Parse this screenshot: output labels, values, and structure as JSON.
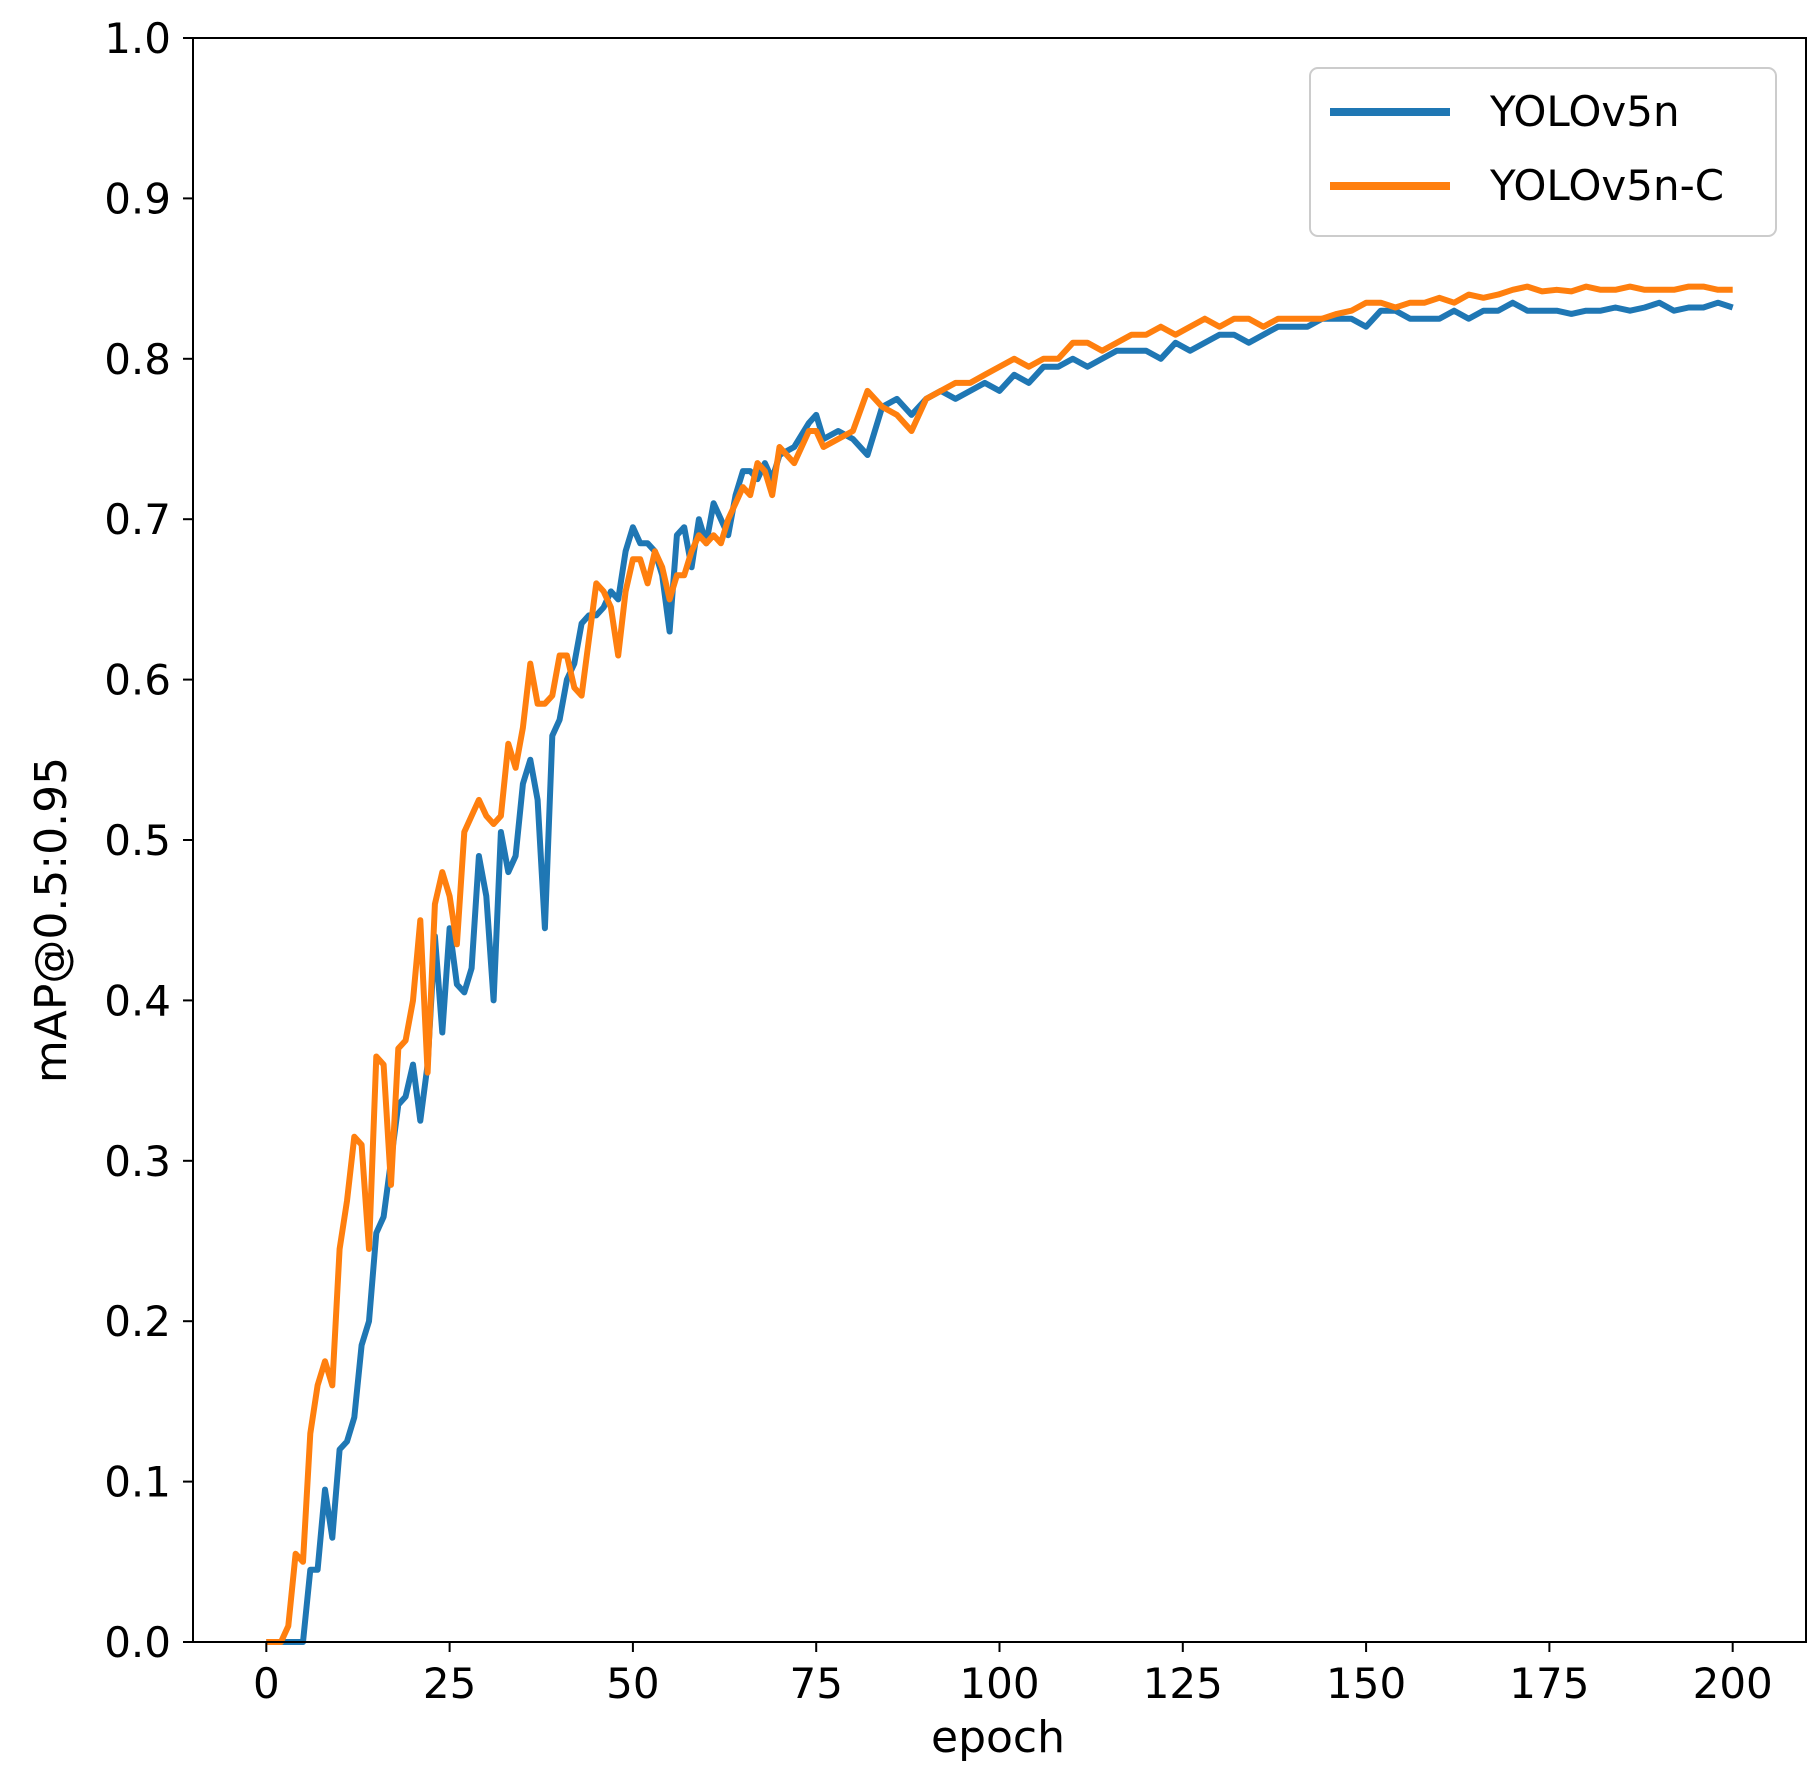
{
  "chart_data": {
    "type": "line",
    "xlabel": "epoch",
    "ylabel": "mAP@0.5:0.95",
    "xlim": [
      -10,
      210
    ],
    "ylim": [
      0.0,
      1.0
    ],
    "xticks": [
      "0",
      "25",
      "50",
      "75",
      "100",
      "125",
      "150",
      "175",
      "200"
    ],
    "yticks": [
      "0.0",
      "0.1",
      "0.2",
      "0.3",
      "0.4",
      "0.5",
      "0.6",
      "0.7",
      "0.8",
      "0.9",
      "1.0"
    ],
    "grid": false,
    "legend_position": "top-right",
    "series": [
      {
        "name": "YOLOv5n",
        "color": "#1f77b4",
        "x": [
          0,
          2,
          4,
          5,
          6,
          7,
          8,
          9,
          10,
          11,
          12,
          13,
          14,
          15,
          16,
          17,
          18,
          19,
          20,
          21,
          22,
          23,
          24,
          25,
          26,
          27,
          28,
          29,
          30,
          31,
          32,
          33,
          34,
          35,
          36,
          37,
          38,
          39,
          40,
          41,
          42,
          43,
          44,
          45,
          46,
          47,
          48,
          49,
          50,
          51,
          52,
          53,
          54,
          55,
          56,
          57,
          58,
          59,
          60,
          61,
          62,
          63,
          64,
          65,
          66,
          67,
          68,
          69,
          70,
          72,
          74,
          75,
          76,
          78,
          80,
          82,
          84,
          86,
          88,
          90,
          92,
          94,
          96,
          98,
          100,
          102,
          104,
          106,
          108,
          110,
          112,
          114,
          116,
          118,
          120,
          122,
          124,
          126,
          128,
          130,
          132,
          134,
          136,
          138,
          140,
          142,
          144,
          146,
          148,
          150,
          152,
          154,
          156,
          158,
          160,
          162,
          164,
          166,
          168,
          170,
          172,
          174,
          176,
          178,
          180,
          182,
          184,
          186,
          188,
          190,
          192,
          194,
          196,
          198,
          200
        ],
        "values": [
          0.0,
          0.0,
          0.0,
          0.0,
          0.045,
          0.045,
          0.095,
          0.065,
          0.12,
          0.125,
          0.14,
          0.185,
          0.2,
          0.255,
          0.265,
          0.3,
          0.335,
          0.34,
          0.36,
          0.325,
          0.36,
          0.44,
          0.38,
          0.445,
          0.41,
          0.405,
          0.42,
          0.49,
          0.465,
          0.4,
          0.505,
          0.48,
          0.49,
          0.535,
          0.55,
          0.525,
          0.445,
          0.565,
          0.575,
          0.6,
          0.61,
          0.635,
          0.64,
          0.64,
          0.645,
          0.655,
          0.65,
          0.68,
          0.695,
          0.685,
          0.685,
          0.68,
          0.665,
          0.63,
          0.69,
          0.695,
          0.67,
          0.7,
          0.685,
          0.71,
          0.7,
          0.69,
          0.715,
          0.73,
          0.73,
          0.725,
          0.735,
          0.725,
          0.74,
          0.745,
          0.76,
          0.765,
          0.75,
          0.755,
          0.75,
          0.74,
          0.77,
          0.775,
          0.765,
          0.775,
          0.78,
          0.775,
          0.78,
          0.785,
          0.78,
          0.79,
          0.785,
          0.795,
          0.795,
          0.8,
          0.795,
          0.8,
          0.805,
          0.805,
          0.805,
          0.8,
          0.81,
          0.805,
          0.81,
          0.815,
          0.815,
          0.81,
          0.815,
          0.82,
          0.82,
          0.82,
          0.825,
          0.825,
          0.825,
          0.82,
          0.83,
          0.83,
          0.825,
          0.825,
          0.825,
          0.83,
          0.825,
          0.83,
          0.83,
          0.835,
          0.83,
          0.83,
          0.83,
          0.828,
          0.83,
          0.83,
          0.832,
          0.83,
          0.832,
          0.835,
          0.83,
          0.832,
          0.832,
          0.835,
          0.832
        ]
      },
      {
        "name": "YOLOv5n-C",
        "color": "#ff7f0e",
        "x": [
          0,
          2,
          3,
          4,
          5,
          6,
          7,
          8,
          9,
          10,
          11,
          12,
          13,
          14,
          15,
          16,
          17,
          18,
          19,
          20,
          21,
          22,
          23,
          24,
          25,
          26,
          27,
          28,
          29,
          30,
          31,
          32,
          33,
          34,
          35,
          36,
          37,
          38,
          39,
          40,
          41,
          42,
          43,
          44,
          45,
          46,
          47,
          48,
          49,
          50,
          51,
          52,
          53,
          54,
          55,
          56,
          57,
          58,
          59,
          60,
          61,
          62,
          63,
          64,
          65,
          66,
          67,
          68,
          69,
          70,
          72,
          74,
          75,
          76,
          78,
          80,
          82,
          84,
          86,
          88,
          90,
          92,
          94,
          96,
          98,
          100,
          102,
          104,
          106,
          108,
          110,
          112,
          114,
          116,
          118,
          120,
          122,
          124,
          126,
          128,
          130,
          132,
          134,
          136,
          138,
          140,
          142,
          144,
          146,
          148,
          150,
          152,
          154,
          156,
          158,
          160,
          162,
          164,
          166,
          168,
          170,
          172,
          174,
          176,
          178,
          180,
          182,
          184,
          186,
          188,
          190,
          192,
          194,
          196,
          198,
          200
        ],
        "values": [
          0.0,
          0.0,
          0.01,
          0.055,
          0.05,
          0.13,
          0.16,
          0.175,
          0.16,
          0.245,
          0.275,
          0.315,
          0.31,
          0.245,
          0.365,
          0.36,
          0.285,
          0.37,
          0.375,
          0.4,
          0.45,
          0.355,
          0.46,
          0.48,
          0.465,
          0.435,
          0.505,
          0.515,
          0.525,
          0.515,
          0.51,
          0.515,
          0.56,
          0.545,
          0.57,
          0.61,
          0.585,
          0.585,
          0.59,
          0.615,
          0.615,
          0.595,
          0.59,
          0.625,
          0.66,
          0.655,
          0.645,
          0.615,
          0.655,
          0.675,
          0.675,
          0.66,
          0.68,
          0.67,
          0.65,
          0.665,
          0.665,
          0.68,
          0.69,
          0.685,
          0.69,
          0.685,
          0.7,
          0.71,
          0.72,
          0.715,
          0.735,
          0.73,
          0.715,
          0.745,
          0.735,
          0.755,
          0.755,
          0.745,
          0.75,
          0.755,
          0.78,
          0.77,
          0.765,
          0.755,
          0.775,
          0.78,
          0.785,
          0.785,
          0.79,
          0.795,
          0.8,
          0.795,
          0.8,
          0.8,
          0.81,
          0.81,
          0.805,
          0.81,
          0.815,
          0.815,
          0.82,
          0.815,
          0.82,
          0.825,
          0.82,
          0.825,
          0.825,
          0.82,
          0.825,
          0.825,
          0.825,
          0.825,
          0.828,
          0.83,
          0.835,
          0.835,
          0.832,
          0.835,
          0.835,
          0.838,
          0.835,
          0.84,
          0.838,
          0.84,
          0.843,
          0.845,
          0.842,
          0.843,
          0.842,
          0.845,
          0.843,
          0.843,
          0.845,
          0.843,
          0.843,
          0.843,
          0.845,
          0.845,
          0.843,
          0.843
        ]
      }
    ]
  }
}
